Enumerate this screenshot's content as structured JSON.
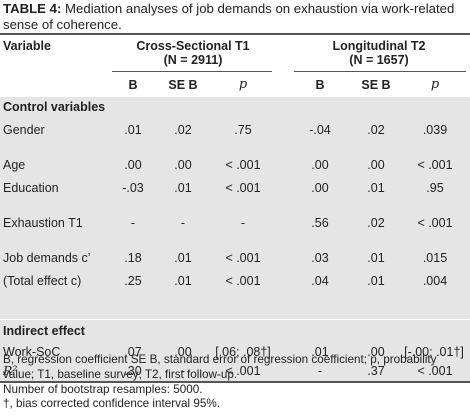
{
  "caption": {
    "label": "TABLE 4:",
    "text": "Mediation analyses of job demands on exhaustion via work-related sense of coherence."
  },
  "header": {
    "variable": "Variable",
    "group1_title": "Cross-Sectional T1",
    "group1_n": "(N = 2911)",
    "group2_title": "Longitudinal T2",
    "group2_n": "(N = 1657)",
    "col_b": "B",
    "col_seb": "SE B",
    "col_p": "p"
  },
  "sections": {
    "control": "Control variables",
    "indirect": "Indirect effect"
  },
  "rows": [
    {
      "label": "Gender",
      "v": [
        ".01",
        ".02",
        ".75",
        "-.04",
        ".02",
        ".039"
      ]
    },
    {
      "label": "Age",
      "v": [
        ".00",
        ".00",
        "< .001",
        ".00",
        ".00",
        "< .001"
      ]
    },
    {
      "label": "Education",
      "v": [
        "-.03",
        ".01",
        "< .001",
        ".00",
        ".01",
        ".95"
      ]
    },
    {
      "label": "Exhaustion T1",
      "v": [
        "-",
        "-",
        "-",
        ".56",
        ".02",
        "< .001"
      ]
    },
    {
      "label": "Job demands c’",
      "v": [
        ".18",
        ".01",
        "< .001",
        ".03",
        ".01",
        ".015"
      ]
    },
    {
      "label": "(Total effect c)",
      "v": [
        ".25",
        ".01",
        "< .001",
        ".04",
        ".01",
        ".004"
      ]
    }
  ],
  "indirect_rows": [
    {
      "label": "Work-SoC",
      "v": [
        ".07",
        ".00",
        "[.06; .08†]",
        ".01",
        ".00",
        "[-.00; .01†]"
      ]
    },
    {
      "label": "R²",
      "v": [
        ".30",
        "-",
        "< .001",
        "-",
        ".37",
        "< .001"
      ]
    }
  ],
  "notes": [
    "B, regression coefficient SE B, standard error of regression coefficient; p, probability value; T1, baseline survey; T2, first follow-up.",
    "Number of bootstrap resamples: 5000.",
    "†, bias corrected confidence interval 95%."
  ]
}
